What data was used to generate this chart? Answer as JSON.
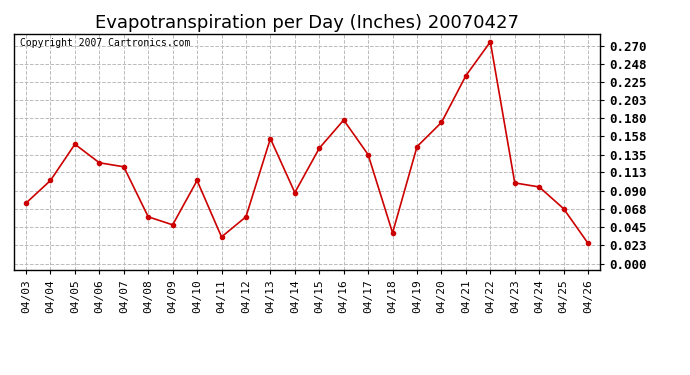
{
  "title": "Evapotranspiration per Day (Inches) 20070427",
  "copyright_text": "Copyright 2007 Cartronics.com",
  "dates": [
    "04/03",
    "04/04",
    "04/05",
    "04/06",
    "04/07",
    "04/08",
    "04/09",
    "04/10",
    "04/11",
    "04/12",
    "04/13",
    "04/14",
    "04/15",
    "04/16",
    "04/17",
    "04/18",
    "04/19",
    "04/20",
    "04/21",
    "04/22",
    "04/23",
    "04/24",
    "04/25",
    "04/26"
  ],
  "values": [
    0.075,
    0.103,
    0.148,
    0.125,
    0.12,
    0.058,
    0.048,
    0.103,
    0.033,
    0.058,
    0.155,
    0.088,
    0.143,
    0.178,
    0.135,
    0.038,
    0.145,
    0.175,
    0.233,
    0.275,
    0.1,
    0.095,
    0.068,
    0.025
  ],
  "line_color": "#cc0000",
  "marker": "o",
  "marker_size": 3,
  "line_width": 1.2,
  "background_color": "#ffffff",
  "grid_color": "#bbbbbb",
  "grid_linestyle": "--",
  "yticks": [
    0.0,
    0.023,
    0.045,
    0.068,
    0.09,
    0.113,
    0.135,
    0.158,
    0.18,
    0.203,
    0.225,
    0.248,
    0.27
  ],
  "ylim": [
    -0.008,
    0.285
  ],
  "title_fontsize": 13,
  "copyright_fontsize": 7,
  "tick_fontsize": 8,
  "ytick_fontsize": 9
}
